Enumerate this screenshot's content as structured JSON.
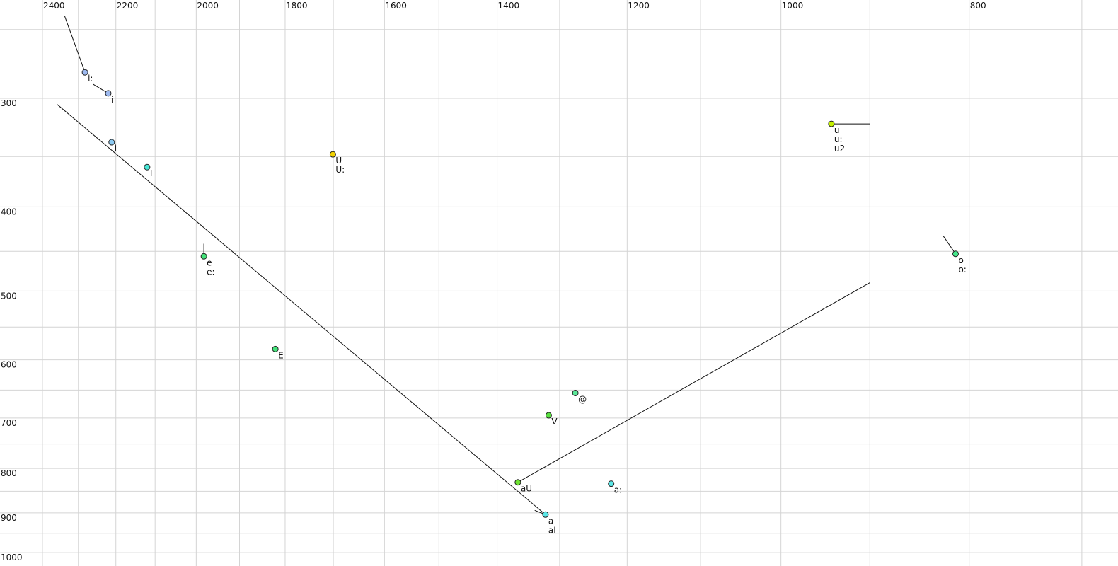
{
  "chart_data": {
    "type": "scatter",
    "title": "",
    "xlabel": "",
    "ylabel": "",
    "x_scale": "log",
    "y_scale": "log",
    "x_reversed": true,
    "xlim": [
      2400,
      680
    ],
    "ylim": [
      250,
      1010
    ],
    "grid": true,
    "x_ticks": [
      2400,
      2200,
      2000,
      1800,
      1600,
      1400,
      1200,
      1000,
      800
    ],
    "x_gridlines": [
      2400,
      2300,
      2200,
      2100,
      2000,
      1900,
      1800,
      1700,
      1600,
      1500,
      1400,
      1300,
      1200,
      1100,
      1000,
      900,
      800,
      700
    ],
    "y_ticks": [
      300,
      400,
      500,
      600,
      700,
      800,
      900,
      1000
    ],
    "y_gridlines": [
      250,
      300,
      350,
      400,
      450,
      500,
      550,
      600,
      650,
      700,
      750,
      800,
      850,
      900,
      950,
      1000
    ],
    "points": [
      {
        "labels": [
          "i:"
        ],
        "f2": 2282,
        "f1": 280,
        "color": "#9db9ef"
      },
      {
        "labels": [
          "i"
        ],
        "f2": 2220,
        "f1": 296,
        "color": "#9db9ef"
      },
      {
        "labels": [
          "i"
        ],
        "f2": 2211,
        "f1": 337,
        "color": "#8ccaf2"
      },
      {
        "labels": [
          "I"
        ],
        "f2": 2120,
        "f1": 360,
        "color": "#48e6d6"
      },
      {
        "labels": [
          "U",
          "U:"
        ],
        "f2": 1701,
        "f1": 348,
        "color": "#f2d200"
      },
      {
        "labels": [
          "e",
          "e:"
        ],
        "f2": 1982,
        "f1": 456,
        "color": "#44e27a"
      },
      {
        "labels": [
          "E"
        ],
        "f2": 1821,
        "f1": 583,
        "color": "#44e27a"
      },
      {
        "labels": [
          "@"
        ],
        "f2": 1276,
        "f1": 655,
        "color": "#5ae898"
      },
      {
        "labels": [
          "V"
        ],
        "f2": 1317,
        "f1": 695,
        "color": "#58e040"
      },
      {
        "labels": [
          "aU"
        ],
        "f2": 1366,
        "f1": 830,
        "color": "#6ee232"
      },
      {
        "labels": [
          "a",
          "aI"
        ],
        "f2": 1322,
        "f1": 904,
        "color": "#5ae6e6"
      },
      {
        "labels": [
          "a:"
        ],
        "f2": 1223,
        "f1": 833,
        "color": "#5ae6e6"
      },
      {
        "labels": [
          "u",
          "u:",
          "u2"
        ],
        "f2": 942,
        "f1": 321,
        "color": "#c4f000"
      },
      {
        "labels": [
          "o",
          "o:"
        ],
        "f2": 813,
        "f1": 453,
        "color": "#44e68a"
      }
    ],
    "trajectories": [
      {
        "from": [
          2338,
          241
        ],
        "to": [
          2282,
          280
        ]
      },
      {
        "from": [
          2260,
          289
        ],
        "to": [
          2220,
          296
        ]
      },
      {
        "from": [
          2358,
          305
        ],
        "to": [
          1322,
          904
        ]
      },
      {
        "from": [
          1982,
          441
        ],
        "to": [
          1982,
          456
        ]
      },
      {
        "from": [
          1366,
          830
        ],
        "to": [
          900,
          489
        ]
      },
      {
        "from": [
          942,
          321
        ],
        "to": [
          900,
          321
        ]
      },
      {
        "from": [
          825,
          432
        ],
        "to": [
          813,
          453
        ]
      },
      {
        "from": [
          1339,
          894
        ],
        "to": [
          1322,
          904
        ]
      }
    ]
  }
}
